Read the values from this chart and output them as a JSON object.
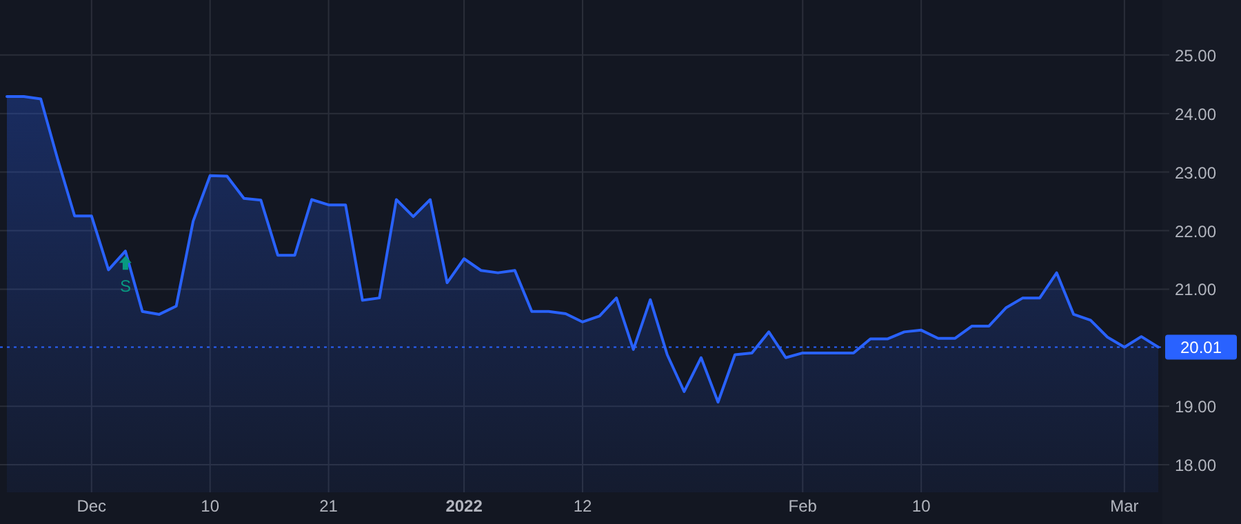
{
  "chart_data": {
    "type": "area",
    "categories": [
      null,
      null,
      null,
      null,
      null,
      "Dec",
      null,
      null,
      null,
      null,
      null,
      null,
      "10",
      null,
      null,
      null,
      null,
      null,
      null,
      "21",
      null,
      null,
      null,
      null,
      null,
      null,
      null,
      "2022",
      null,
      null,
      null,
      null,
      null,
      null,
      "12",
      null,
      null,
      null,
      null,
      null,
      null,
      null,
      null,
      null,
      null,
      null,
      null,
      "Feb",
      null,
      null,
      null,
      null,
      null,
      null,
      "10",
      null,
      null,
      null,
      null,
      null,
      null,
      null,
      null,
      null,
      null,
      null,
      "Mar",
      null,
      null
    ],
    "values": [
      24.29,
      24.29,
      24.25,
      23.22,
      22.25,
      22.25,
      21.33,
      21.65,
      20.62,
      20.57,
      20.71,
      22.16,
      22.94,
      22.93,
      22.55,
      22.52,
      21.58,
      21.58,
      22.53,
      22.44,
      22.44,
      20.81,
      20.85,
      22.53,
      22.24,
      22.53,
      21.11,
      21.52,
      21.32,
      21.28,
      21.32,
      20.62,
      20.62,
      20.58,
      20.44,
      20.54,
      20.85,
      19.97,
      20.82,
      19.88,
      19.25,
      19.83,
      19.07,
      19.88,
      19.91,
      20.27,
      19.83,
      19.91,
      19.91,
      19.91,
      19.91,
      20.15,
      20.15,
      20.27,
      20.3,
      20.16,
      20.16,
      20.37,
      20.37,
      20.68,
      20.85,
      20.85,
      21.28,
      20.57,
      20.47,
      20.18,
      20.01,
      20.19,
      20.01
    ],
    "color": "#2962ff",
    "ylim": [
      17.53,
      25.94
    ],
    "yticks": [
      {
        "value": 18,
        "label": "18.00"
      },
      {
        "value": 19,
        "label": "19.00"
      },
      {
        "value": 21,
        "label": "21.00"
      },
      {
        "value": 22,
        "label": "22.00"
      },
      {
        "value": 23,
        "label": "23.00"
      },
      {
        "value": 24,
        "label": "24.00"
      },
      {
        "value": 25,
        "label": "25.00"
      }
    ],
    "grid": true,
    "ref_lines": [
      {
        "axis": "y",
        "value": 20.01,
        "label": "20.01",
        "color": "#2962ff",
        "line_style": "dotted"
      }
    ],
    "annotations": [
      {
        "text": "S",
        "y": 21.45
      }
    ]
  }
}
